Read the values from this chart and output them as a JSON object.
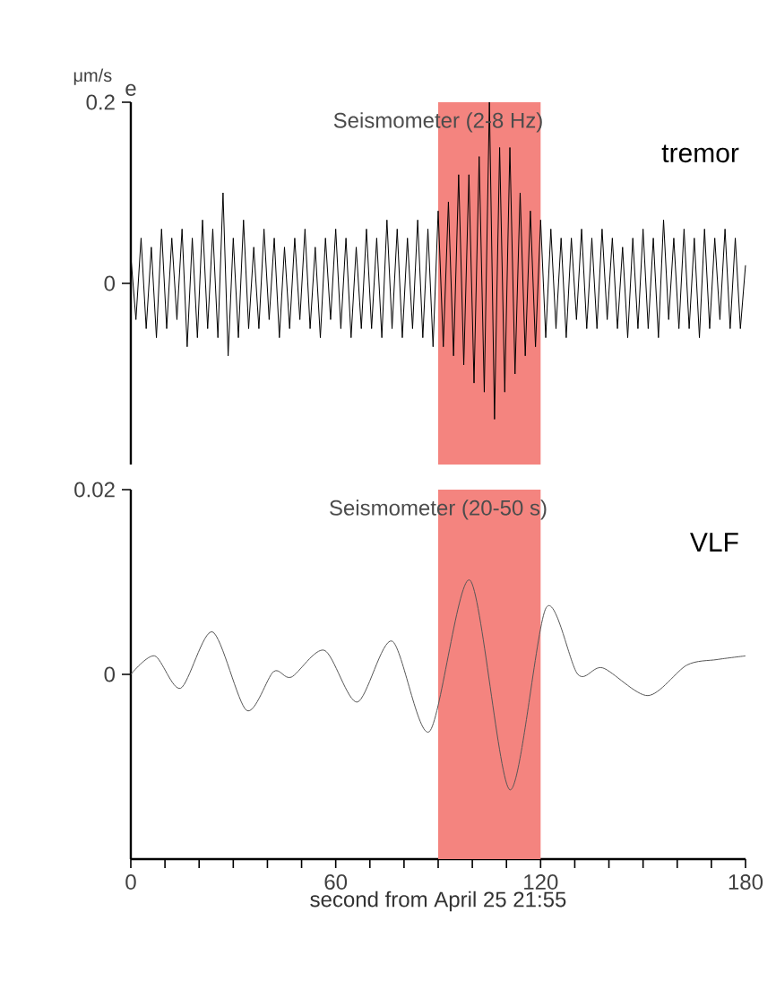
{
  "chart_data": [
    {
      "type": "line",
      "title": "Seismometer (2-8 Hz)",
      "ylabel": "μm/s",
      "annotations": [
        "e",
        "tremor"
      ],
      "xlim": [
        0,
        180
      ],
      "ylim": [
        -0.2,
        0.2
      ],
      "yticks": [
        0,
        0.2
      ],
      "tick_labels": "y",
      "grid": false,
      "bands": [
        {
          "axis": "x",
          "from": 90,
          "to": 120,
          "color": "#f4847f"
        }
      ],
      "series": [
        {
          "color": "#000000",
          "marker": "none",
          "x": [
            0,
            1.5,
            3,
            4.5,
            6,
            7.5,
            9,
            10.5,
            12,
            13.5,
            15,
            16.5,
            18,
            19.5,
            21,
            22.5,
            24,
            25.5,
            27,
            28.5,
            30,
            31.5,
            33,
            34.5,
            36,
            37.5,
            39,
            40.5,
            42,
            43.5,
            45,
            46.5,
            48,
            49.5,
            51,
            52.5,
            54,
            55.5,
            57,
            58.5,
            60,
            61.5,
            63,
            64.5,
            66,
            67.5,
            69,
            70.5,
            72,
            73.5,
            75,
            76.5,
            78,
            79.5,
            81,
            82.5,
            84,
            85.5,
            87,
            88.5,
            90,
            91.5,
            93,
            94.5,
            96,
            97.5,
            99,
            100.5,
            102,
            103.5,
            105,
            106.5,
            108,
            109.5,
            111,
            112.5,
            114,
            115.5,
            117,
            118.5,
            120,
            121.5,
            123,
            124.5,
            126,
            127.5,
            129,
            130.5,
            132,
            133.5,
            135,
            136.5,
            138,
            139.5,
            141,
            142.5,
            144,
            145.5,
            147,
            148.5,
            150,
            151.5,
            153,
            154.5,
            156,
            157.5,
            159,
            160.5,
            162,
            163.5,
            165,
            166.5,
            168,
            169.5,
            171,
            172.5,
            174,
            175.5,
            177,
            178.5,
            180
          ],
          "values": [
            0.03,
            -0.04,
            0.05,
            -0.05,
            0.04,
            -0.06,
            0.06,
            -0.05,
            0.05,
            -0.04,
            0.06,
            -0.07,
            0.05,
            -0.06,
            0.07,
            -0.05,
            0.06,
            -0.06,
            0.1,
            -0.08,
            0.05,
            -0.06,
            0.07,
            -0.05,
            0.04,
            -0.05,
            0.06,
            -0.04,
            0.05,
            -0.06,
            0.04,
            -0.05,
            0.05,
            -0.04,
            0.06,
            -0.05,
            0.04,
            -0.06,
            0.05,
            -0.04,
            0.06,
            -0.05,
            0.05,
            -0.06,
            0.04,
            -0.05,
            0.06,
            -0.05,
            0.05,
            -0.06,
            0.07,
            -0.05,
            0.06,
            -0.06,
            0.05,
            -0.05,
            0.07,
            -0.06,
            0.06,
            -0.07,
            0.08,
            -0.07,
            0.09,
            -0.08,
            0.12,
            -0.09,
            0.12,
            -0.11,
            0.14,
            -0.12,
            0.2,
            -0.15,
            0.15,
            -0.12,
            0.15,
            -0.1,
            0.1,
            -0.08,
            0.08,
            -0.07,
            0.07,
            -0.06,
            0.06,
            -0.05,
            0.05,
            -0.06,
            0.05,
            -0.04,
            0.06,
            -0.05,
            0.05,
            -0.05,
            0.06,
            -0.04,
            0.05,
            -0.05,
            0.04,
            -0.06,
            0.05,
            -0.05,
            0.06,
            -0.05,
            0.05,
            -0.06,
            0.07,
            -0.04,
            0.05,
            -0.05,
            0.06,
            -0.05,
            0.05,
            -0.06,
            0.06,
            -0.05,
            0.05,
            -0.04,
            0.06,
            -0.05,
            0.05,
            -0.05,
            0.02
          ]
        }
      ]
    },
    {
      "type": "line",
      "title": "Seismometer (20-50 s)",
      "xlabel": "second from April 25 21:55",
      "annotations": [
        "VLF"
      ],
      "xlim": [
        0,
        180
      ],
      "xticks": [
        0,
        {
          "value": 10,
          "label": null
        },
        {
          "value": 20,
          "label": null
        },
        {
          "value": 30,
          "label": null
        },
        {
          "value": 40,
          "label": null
        },
        {
          "value": 50,
          "label": null
        },
        60,
        {
          "value": 70,
          "label": null
        },
        {
          "value": 80,
          "label": null
        },
        {
          "value": 90,
          "label": null
        },
        {
          "value": 100,
          "label": null
        },
        {
          "value": 110,
          "label": null
        },
        120,
        {
          "value": 130,
          "label": null
        },
        {
          "value": 140,
          "label": null
        },
        {
          "value": 150,
          "label": null
        },
        {
          "value": 160,
          "label": null
        },
        {
          "value": 170,
          "label": null
        },
        180
      ],
      "ylim": [
        -0.02,
        0.02
      ],
      "yticks": [
        0,
        0.02
      ],
      "grid": false,
      "bands": [
        {
          "axis": "x",
          "from": 90,
          "to": 120,
          "color": "#f4847f"
        }
      ],
      "series": [
        {
          "color": "#555555",
          "marker": "none",
          "x": [
            0,
            7,
            14.6,
            23.9,
            33.9,
            41.8,
            47,
            56.7,
            66.3,
            76.5,
            87.4,
            99.3,
            111,
            121.6,
            130.9,
            138.2,
            151.4,
            162.8,
            171.6,
            180
          ],
          "values": [
            0,
            0.002,
            -0.0015,
            0.0046,
            -0.0039,
            0.0003,
            -0.0003,
            0.0026,
            -0.003,
            0.0036,
            -0.0062,
            0.0102,
            -0.0125,
            0.0072,
            0,
            0.0007,
            -0.0023,
            0.001,
            0.0016,
            0.002
          ]
        }
      ]
    }
  ]
}
